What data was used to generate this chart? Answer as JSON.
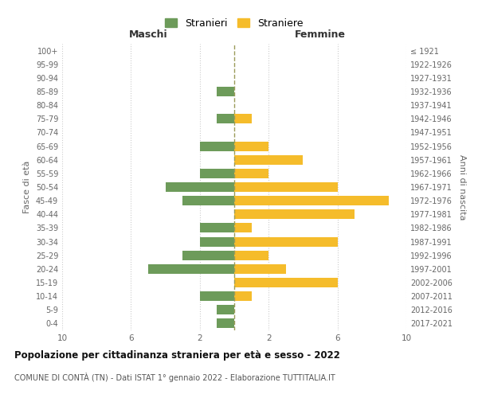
{
  "age_groups": [
    "100+",
    "95-99",
    "90-94",
    "85-89",
    "80-84",
    "75-79",
    "70-74",
    "65-69",
    "60-64",
    "55-59",
    "50-54",
    "45-49",
    "40-44",
    "35-39",
    "30-34",
    "25-29",
    "20-24",
    "15-19",
    "10-14",
    "5-9",
    "0-4"
  ],
  "birth_years": [
    "≤ 1921",
    "1922-1926",
    "1927-1931",
    "1932-1936",
    "1937-1941",
    "1942-1946",
    "1947-1951",
    "1952-1956",
    "1957-1961",
    "1962-1966",
    "1967-1971",
    "1972-1976",
    "1977-1981",
    "1982-1986",
    "1987-1991",
    "1992-1996",
    "1997-2001",
    "2002-2006",
    "2007-2011",
    "2012-2016",
    "2017-2021"
  ],
  "maschi": [
    0,
    0,
    0,
    1,
    0,
    1,
    0,
    2,
    0,
    2,
    4,
    3,
    0,
    2,
    2,
    3,
    5,
    0,
    2,
    1,
    1
  ],
  "femmine": [
    0,
    0,
    0,
    0,
    0,
    1,
    0,
    2,
    4,
    2,
    6,
    9,
    7,
    1,
    6,
    2,
    3,
    6,
    1,
    0,
    0
  ],
  "maschi_color": "#6d9b5a",
  "femmine_color": "#f5bc2b",
  "center_line_color": "#9b9b5a",
  "background_color": "#ffffff",
  "grid_color": "#cccccc",
  "title": "Popolazione per cittadinanza straniera per età e sesso - 2022",
  "subtitle": "COMUNE DI CONTÀ (TN) - Dati ISTAT 1° gennaio 2022 - Elaborazione TUTTITALIA.IT",
  "left_label": "Maschi",
  "right_label": "Femmine",
  "ylabel": "Fasce di età",
  "right_ylabel": "Anni di nascita",
  "legend_maschi": "Stranieri",
  "legend_femmine": "Straniere",
  "xlim": 10
}
